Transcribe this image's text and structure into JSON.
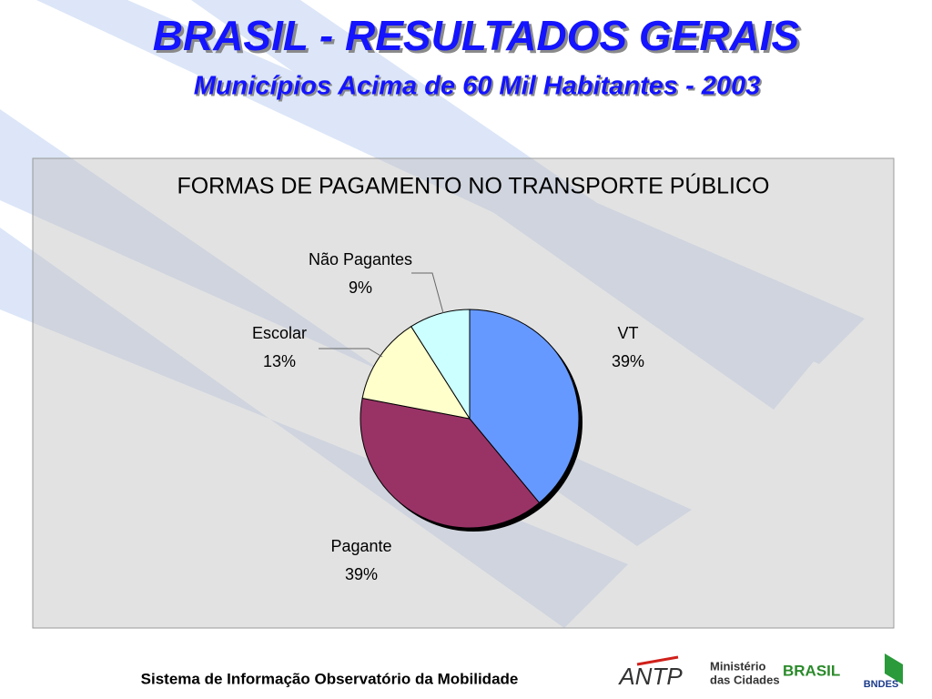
{
  "header": {
    "title": "BRASIL - RESULTADOS GERAIS",
    "subtitle": "Municípios Acima de 60 Mil Habitantes - 2003"
  },
  "chart_data": {
    "type": "pie",
    "title": "FORMAS DE PAGAMENTO NO TRANSPORTE PÚBLICO",
    "categories": [
      "VT",
      "Pagante",
      "Escolar",
      "Não Pagantes"
    ],
    "values": [
      39,
      39,
      13,
      9
    ],
    "value_labels": [
      "39%",
      "39%",
      "13%",
      "9%"
    ],
    "colors": [
      "#6699ff",
      "#993366",
      "#ffffcc",
      "#ccffff"
    ]
  },
  "footer": {
    "text": "Sistema de Informação Observatório da Mobilidade",
    "logos": [
      "ANTP",
      "Ministério",
      "das Cidades",
      "BRASIL",
      "BNDES"
    ]
  }
}
